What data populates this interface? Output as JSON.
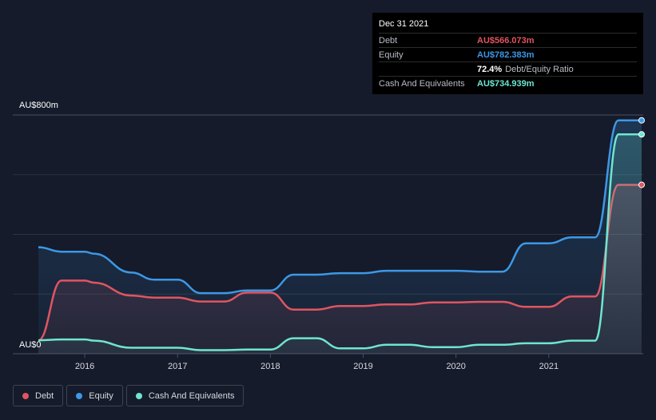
{
  "tooltip": {
    "date": "Dec 31 2021",
    "rows": [
      {
        "label": "Debt",
        "value": "AU$566.073m",
        "color": "#e05561"
      },
      {
        "label": "Equity",
        "value": "AU$782.383m",
        "color": "#3d98e6"
      },
      {
        "label": "",
        "value": "72.4%",
        "sub": "Debt/Equity Ratio"
      },
      {
        "label": "Cash And Equivalents",
        "value": "AU$734.939m",
        "color": "#6ee6cf"
      }
    ]
  },
  "legend": [
    {
      "label": "Debt",
      "color": "#e05561"
    },
    {
      "label": "Equity",
      "color": "#3d98e6"
    },
    {
      "label": "Cash And Equivalents",
      "color": "#6ee6cf"
    }
  ],
  "chart_data": {
    "type": "area",
    "title": "",
    "xlabel": "",
    "ylabel": "",
    "y_top_label": "AU$800m",
    "y_bottom_label": "AU$0",
    "ylim": [
      0,
      800
    ],
    "xlim": [
      2015.5,
      2022.0
    ],
    "x_ticks": [
      2016,
      2017,
      2018,
      2019,
      2020,
      2021
    ],
    "x_tick_labels": [
      "2016",
      "2017",
      "2018",
      "2019",
      "2020",
      "2021"
    ],
    "gridlines": [
      0,
      200,
      400,
      600,
      800
    ],
    "series": [
      {
        "name": "Equity",
        "color": "#3d98e6",
        "points": [
          [
            2015.5,
            357
          ],
          [
            2015.75,
            342
          ],
          [
            2016.0,
            342
          ],
          [
            2016.1,
            335
          ],
          [
            2016.5,
            272
          ],
          [
            2016.75,
            248
          ],
          [
            2017.0,
            248
          ],
          [
            2017.25,
            203
          ],
          [
            2017.5,
            203
          ],
          [
            2017.75,
            212
          ],
          [
            2018.0,
            212
          ],
          [
            2018.25,
            265
          ],
          [
            2018.5,
            265
          ],
          [
            2018.75,
            270
          ],
          [
            2019.0,
            270
          ],
          [
            2019.25,
            278
          ],
          [
            2019.5,
            278
          ],
          [
            2019.75,
            278
          ],
          [
            2020.0,
            278
          ],
          [
            2020.25,
            275
          ],
          [
            2020.5,
            275
          ],
          [
            2020.75,
            370
          ],
          [
            2021.0,
            370
          ],
          [
            2021.25,
            390
          ],
          [
            2021.5,
            390
          ],
          [
            2021.75,
            782
          ],
          [
            2022.0,
            782
          ]
        ]
      },
      {
        "name": "Debt",
        "color": "#e05561",
        "points": [
          [
            2015.5,
            45
          ],
          [
            2015.75,
            245
          ],
          [
            2016.0,
            245
          ],
          [
            2016.1,
            238
          ],
          [
            2016.5,
            195
          ],
          [
            2016.75,
            188
          ],
          [
            2017.0,
            188
          ],
          [
            2017.25,
            175
          ],
          [
            2017.5,
            175
          ],
          [
            2017.75,
            205
          ],
          [
            2018.0,
            205
          ],
          [
            2018.25,
            148
          ],
          [
            2018.5,
            148
          ],
          [
            2018.75,
            160
          ],
          [
            2019.0,
            160
          ],
          [
            2019.25,
            165
          ],
          [
            2019.5,
            165
          ],
          [
            2019.75,
            172
          ],
          [
            2020.0,
            172
          ],
          [
            2020.25,
            174
          ],
          [
            2020.5,
            174
          ],
          [
            2020.75,
            157
          ],
          [
            2021.0,
            157
          ],
          [
            2021.25,
            192
          ],
          [
            2021.5,
            192
          ],
          [
            2021.75,
            566
          ],
          [
            2022.0,
            566
          ]
        ]
      },
      {
        "name": "Cash And Equivalents",
        "color": "#6ee6cf",
        "points": [
          [
            2015.5,
            45
          ],
          [
            2015.75,
            48
          ],
          [
            2016.0,
            48
          ],
          [
            2016.1,
            44
          ],
          [
            2016.5,
            20
          ],
          [
            2016.75,
            20
          ],
          [
            2017.0,
            20
          ],
          [
            2017.25,
            12
          ],
          [
            2017.5,
            12
          ],
          [
            2017.75,
            14
          ],
          [
            2018.0,
            14
          ],
          [
            2018.25,
            52
          ],
          [
            2018.5,
            52
          ],
          [
            2018.75,
            18
          ],
          [
            2019.0,
            18
          ],
          [
            2019.25,
            30
          ],
          [
            2019.5,
            30
          ],
          [
            2019.75,
            22
          ],
          [
            2020.0,
            22
          ],
          [
            2020.25,
            30
          ],
          [
            2020.5,
            30
          ],
          [
            2020.75,
            35
          ],
          [
            2021.0,
            35
          ],
          [
            2021.25,
            44
          ],
          [
            2021.5,
            44
          ],
          [
            2021.75,
            735
          ],
          [
            2022.0,
            735
          ]
        ]
      }
    ]
  }
}
